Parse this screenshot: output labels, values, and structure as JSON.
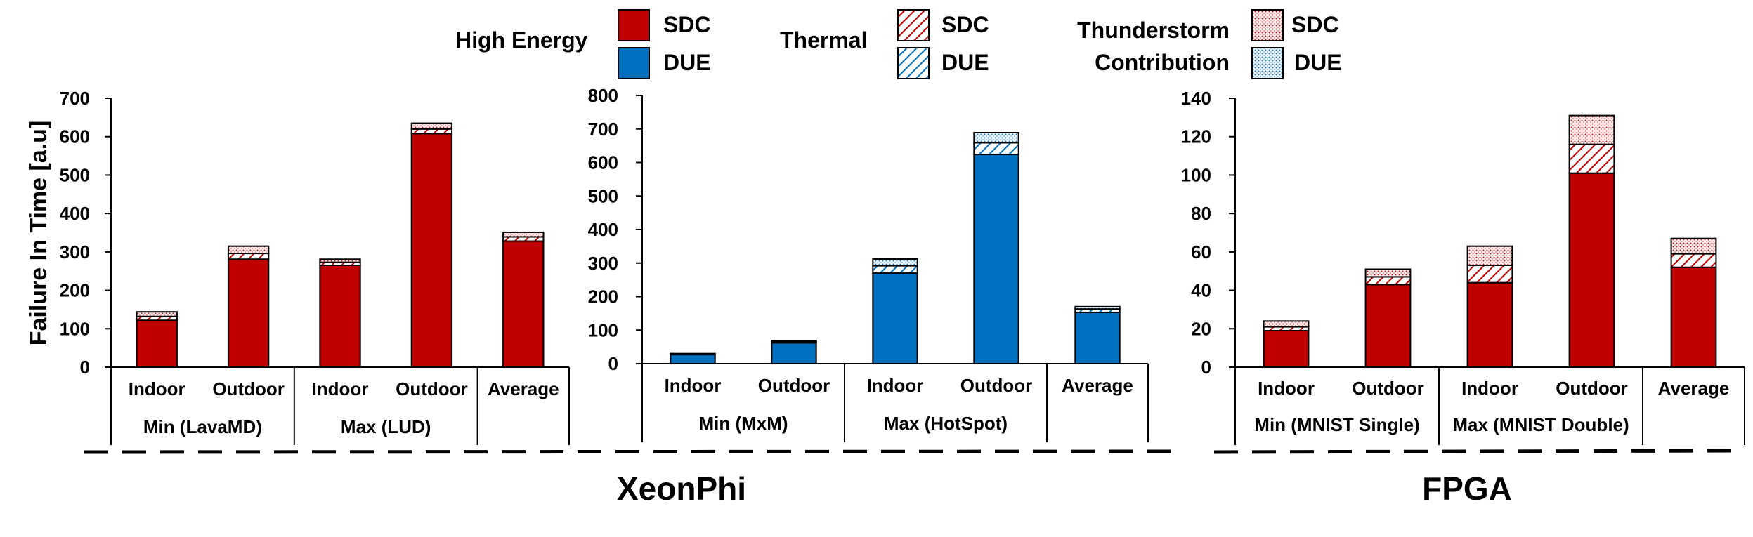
{
  "colors": {
    "sdc": "#c00000",
    "due": "#0070c0",
    "axis": "#000000"
  },
  "legend": {
    "high_energy_label": "High Energy",
    "thermal_label": "Thermal",
    "thunderstorm_label_1": "Thunderstorm",
    "thunderstorm_label_2": "Contribution",
    "sdc_label": "SDC",
    "due_label": "DUE"
  },
  "group_titles": {
    "xeonphi": "XeonPhi",
    "fpga": "FPGA"
  },
  "chart_data": [
    {
      "type": "bar",
      "stacked": true,
      "ylabel": "Failure In Time [a.u]",
      "ylim": [
        0,
        700
      ],
      "yticks": [
        "0",
        "100",
        "200",
        "300",
        "400",
        "500",
        "600",
        "700"
      ],
      "categories": [
        "Indoor",
        "Outdoor",
        "Indoor",
        "Outdoor",
        "Average"
      ],
      "groups": [
        {
          "label": "Min (LavaMD)",
          "span": 2
        },
        {
          "label": "Max (LUD)",
          "span": 2
        },
        {
          "label": "",
          "span": 1
        }
      ],
      "fill": "sdc",
      "series": [
        {
          "name": "High Energy",
          "values": [
            122,
            281,
            265,
            608,
            328
          ]
        },
        {
          "name": "Thermal",
          "values": [
            10,
            15,
            8,
            12,
            11
          ]
        },
        {
          "name": "Thunderstorm Contribution",
          "values": [
            12,
            19,
            8,
            15,
            12
          ]
        }
      ]
    },
    {
      "type": "bar",
      "stacked": true,
      "ylabel": "",
      "ylim": [
        0,
        800
      ],
      "yticks": [
        "0",
        "100",
        "200",
        "300",
        "400",
        "500",
        "600",
        "700",
        "800"
      ],
      "categories": [
        "Indoor",
        "Outdoor",
        "Indoor",
        "Outdoor",
        "Average"
      ],
      "groups": [
        {
          "label": "Min (MxM)",
          "span": 2
        },
        {
          "label": "Max (HotSpot)",
          "span": 2
        },
        {
          "label": "",
          "span": 1
        }
      ],
      "fill": "due",
      "series": [
        {
          "name": "High Energy",
          "values": [
            27,
            62,
            270,
            624,
            153
          ]
        },
        {
          "name": "Thermal",
          "values": [
            2,
            4,
            22,
            35,
            10
          ]
        },
        {
          "name": "Thunderstorm Contribution",
          "values": [
            1,
            3,
            20,
            30,
            7
          ]
        }
      ]
    },
    {
      "type": "bar",
      "stacked": true,
      "ylabel": "",
      "ylim": [
        0,
        140
      ],
      "yticks": [
        "0",
        "20",
        "40",
        "60",
        "80",
        "100",
        "120",
        "140"
      ],
      "categories": [
        "Indoor",
        "Outdoor",
        "Indoor",
        "Outdoor",
        "Average"
      ],
      "groups": [
        {
          "label": "Min (MNIST Single)",
          "span": 2
        },
        {
          "label": "Max (MNIST Double)",
          "span": 2
        },
        {
          "label": "",
          "span": 1
        }
      ],
      "fill": "sdc",
      "series": [
        {
          "name": "High Energy",
          "values": [
            19,
            43,
            44,
            101,
            52
          ]
        },
        {
          "name": "Thermal",
          "values": [
            2,
            4,
            9,
            15,
            7
          ]
        },
        {
          "name": "Thunderstorm Contribution",
          "values": [
            3,
            4,
            10,
            15,
            8
          ]
        }
      ]
    }
  ]
}
